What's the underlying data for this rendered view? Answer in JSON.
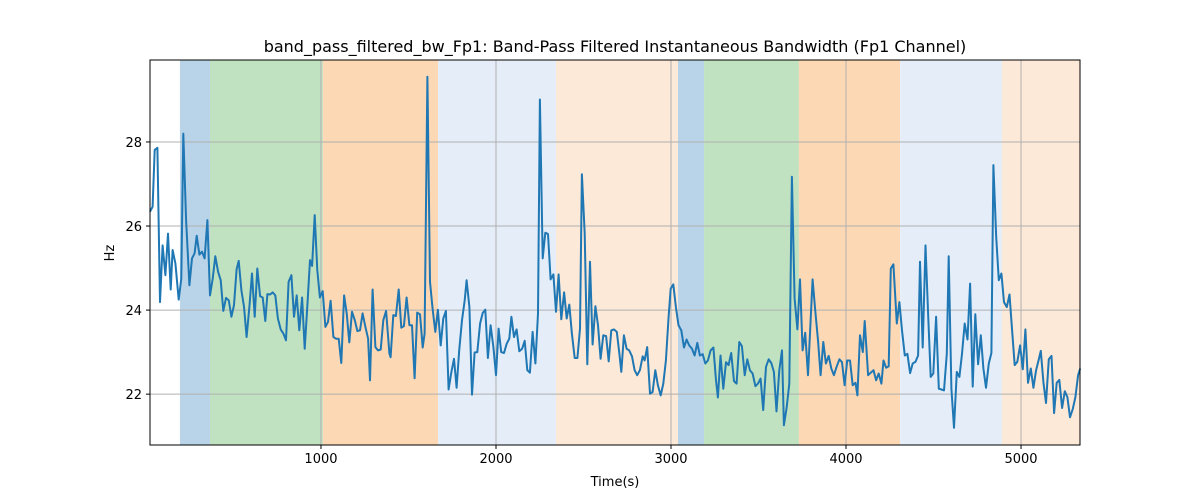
{
  "chart_data": {
    "type": "line",
    "title": "band_pass_filtered_bw_Fp1: Band-Pass Filtered Instantaneous Bandwidth (Fp1 Channel)",
    "xlabel": "Time(s)",
    "ylabel": "Hz",
    "xlim": [
      23,
      5337
    ],
    "ylim": [
      20.79,
      29.95
    ],
    "xticks": [
      1000,
      2000,
      3000,
      4000,
      5000
    ],
    "yticks": [
      22,
      24,
      26,
      28
    ],
    "grid": true,
    "line_color": "#1f77b4",
    "bands": [
      {
        "start": 194,
        "end": 366,
        "color": "#b9d4e9"
      },
      {
        "start": 366,
        "end": 1011,
        "color": "#c0e2c0"
      },
      {
        "start": 1011,
        "end": 1669,
        "color": "#fdd8b5"
      },
      {
        "start": 1669,
        "end": 2343,
        "color": "#e5eef8"
      },
      {
        "start": 2343,
        "end": 3040,
        "color": "#fde9d7"
      },
      {
        "start": 3040,
        "end": 3189,
        "color": "#b9d4e9"
      },
      {
        "start": 3189,
        "end": 3731,
        "color": "#c0e2c0"
      },
      {
        "start": 3731,
        "end": 4309,
        "color": "#fdd8b5"
      },
      {
        "start": 4309,
        "end": 4891,
        "color": "#e5eef8"
      },
      {
        "start": 4891,
        "end": 5337,
        "color": "#fde9d7"
      }
    ],
    "x": [
      23,
      38,
      50,
      65,
      80,
      95,
      111,
      126,
      141,
      152,
      168,
      187,
      202,
      213,
      229,
      248,
      263,
      278,
      290,
      305,
      320,
      335,
      351,
      366,
      381,
      396,
      412,
      427,
      442,
      457,
      473,
      488,
      503,
      518,
      530,
      545,
      560,
      575,
      591,
      606,
      621,
      636,
      652,
      667,
      682,
      694,
      709,
      724,
      739,
      754,
      770,
      785,
      800,
      815,
      831,
      846,
      861,
      876,
      892,
      907,
      922,
      937,
      949,
      964,
      979,
      994,
      1010,
      1025,
      1040,
      1055,
      1071,
      1086,
      1101,
      1116,
      1132,
      1147,
      1162,
      1177,
      1193,
      1208,
      1223,
      1238,
      1254,
      1269,
      1280,
      1295,
      1311,
      1326,
      1341,
      1356,
      1372,
      1391,
      1398,
      1413,
      1428,
      1444,
      1459,
      1474,
      1489,
      1505,
      1520,
      1535,
      1550,
      1566,
      1581,
      1592,
      1608,
      1623,
      1638,
      1653,
      1668,
      1684,
      1699,
      1714,
      1729,
      1745,
      1760,
      1775,
      1790,
      1806,
      1821,
      1832,
      1848,
      1863,
      1878,
      1893,
      1909,
      1924,
      1939,
      1954,
      1969,
      1985,
      2000,
      2015,
      2030,
      2046,
      2061,
      2076,
      2088,
      2103,
      2118,
      2133,
      2149,
      2164,
      2179,
      2194,
      2209,
      2225,
      2240,
      2251,
      2267,
      2282,
      2297,
      2312,
      2328,
      2343,
      2358,
      2373,
      2389,
      2404,
      2419,
      2434,
      2450,
      2465,
      2480,
      2491,
      2507,
      2522,
      2537,
      2552,
      2568,
      2583,
      2598,
      2613,
      2629,
      2644,
      2659,
      2674,
      2690,
      2705,
      2716,
      2731,
      2746,
      2761,
      2777,
      2792,
      2807,
      2822,
      2838,
      2849,
      2864,
      2880,
      2895,
      2910,
      2925,
      2941,
      2956,
      2971,
      2986,
      2998,
      3013,
      3028,
      3043,
      3059,
      3074,
      3089,
      3104,
      3120,
      3135,
      3150,
      3165,
      3181,
      3196,
      3211,
      3226,
      3242,
      3257,
      3268,
      3283,
      3299,
      3314,
      3329,
      3344,
      3360,
      3375,
      3390,
      3405,
      3421,
      3436,
      3451,
      3466,
      3482,
      3497,
      3512,
      3527,
      3543,
      3558,
      3573,
      3588,
      3603,
      3619,
      3634,
      3645,
      3661,
      3676,
      3691,
      3706,
      3722,
      3737,
      3752,
      3767,
      3783,
      3798,
      3809,
      3824,
      3840,
      3855,
      3870,
      3885,
      3901,
      3916,
      3931,
      3946,
      3962,
      3977,
      3992,
      4007,
      4023,
      4038,
      4054,
      4065,
      4080,
      4096,
      4107,
      4126,
      4141,
      4157,
      4172,
      4187,
      4202,
      4214,
      4229,
      4244,
      4256,
      4271,
      4290,
      4305,
      4320,
      4336,
      4351,
      4366,
      4381,
      4397,
      4412,
      4423,
      4438,
      4454,
      4469,
      4484,
      4499,
      4515,
      4530,
      4545,
      4560,
      4576,
      4587,
      4602,
      4617,
      4633,
      4648,
      4663,
      4678,
      4694,
      4709,
      4724,
      4739,
      4755,
      4770,
      4785,
      4800,
      4816,
      4831,
      4842,
      4858,
      4873,
      4888,
      4903,
      4919,
      4934,
      4949,
      4964,
      4979,
      4995,
      5010,
      5025,
      5040,
      5056,
      5071,
      5086,
      5101,
      5113,
      5128,
      5143,
      5159,
      5174,
      5189,
      5204,
      5219,
      5235,
      5250,
      5265,
      5280,
      5296,
      5311,
      5326,
      5338
    ],
    "y": [
      26.34,
      26.46,
      27.81,
      27.86,
      24.19,
      25.54,
      24.83,
      25.82,
      24.49,
      25.43,
      25.11,
      24.25,
      24.75,
      28.2,
      26.14,
      24.59,
      25.23,
      25.35,
      25.77,
      25.32,
      25.39,
      25.23,
      26.14,
      24.35,
      24.75,
      25.28,
      24.91,
      24.71,
      23.98,
      24.29,
      24.23,
      23.84,
      24.12,
      24.97,
      25.17,
      24.47,
      24.08,
      23.36,
      24.08,
      24.87,
      23.84,
      24.99,
      24.33,
      24.3,
      23.74,
      24.38,
      24.37,
      24.42,
      24.35,
      23.8,
      23.54,
      23.44,
      23.28,
      24.67,
      24.83,
      23.84,
      24.35,
      23.52,
      24.3,
      23.08,
      24.08,
      25.19,
      25.05,
      26.26,
      24.95,
      24.3,
      24.45,
      23.6,
      23.72,
      24.22,
      23.36,
      23.32,
      23.32,
      22.74,
      24.35,
      23.92,
      23.23,
      23.96,
      23.76,
      23.5,
      23.52,
      23.92,
      23.6,
      23.32,
      22.33,
      24.49,
      23.12,
      23.04,
      23.06,
      23.76,
      23.98,
      22.97,
      22.88,
      23.88,
      23.86,
      24.49,
      23.58,
      23.62,
      24.3,
      23.64,
      23.64,
      22.38,
      23.94,
      23.9,
      23.11,
      23.44,
      29.55,
      24.67,
      24.03,
      23.48,
      24.01,
      23.16,
      23.8,
      23.98,
      22.11,
      22.53,
      22.84,
      22.15,
      23.04,
      23.76,
      24.23,
      24.71,
      24.07,
      21.99,
      22.99,
      23.0,
      23.68,
      23.93,
      24.01,
      22.86,
      23.64,
      23.12,
      22.45,
      23.56,
      23.0,
      22.98,
      23.2,
      23.32,
      23.84,
      23.36,
      23.54,
      23.02,
      23.08,
      23.27,
      22.57,
      22.51,
      23.48,
      22.73,
      23.92,
      29.01,
      25.23,
      25.84,
      25.81,
      24.73,
      24.85,
      23.96,
      24.85,
      23.78,
      24.42,
      23.8,
      24.13,
      23.44,
      22.86,
      22.86,
      23.56,
      27.23,
      25.82,
      22.71,
      25.15,
      23.18,
      24.09,
      23.64,
      22.84,
      23.4,
      23.38,
      22.78,
      23.52,
      23.54,
      23.48,
      22.96,
      22.53,
      23.4,
      23.08,
      23.04,
      22.9,
      22.57,
      22.45,
      22.57,
      22.9,
      22.8,
      23.12,
      22.01,
      22.05,
      22.57,
      22.21,
      21.97,
      22.25,
      22.8,
      23.84,
      24.51,
      24.61,
      24.07,
      23.64,
      23.52,
      23.11,
      23.3,
      23.16,
      23.08,
      22.92,
      23.22,
      22.92,
      22.95,
      22.73,
      22.8,
      23.04,
      23.11,
      22.33,
      21.92,
      22.92,
      22.13,
      22.76,
      22.69,
      22.98,
      22.31,
      22.25,
      23.24,
      23.14,
      22.45,
      22.83,
      22.57,
      22.49,
      22.19,
      22.25,
      22.37,
      21.62,
      22.65,
      22.83,
      22.74,
      22.53,
      21.59,
      22.57,
      23.04,
      21.26,
      21.69,
      22.25,
      27.17,
      24.27,
      23.54,
      24.73,
      23.04,
      23.46,
      22.45,
      23.8,
      24.73,
      24.0,
      23.28,
      22.45,
      23.24,
      22.73,
      22.91,
      22.61,
      22.45,
      22.65,
      22.83,
      22.76,
      22.21,
      22.8,
      22.8,
      22.21,
      22.27,
      21.97,
      23.4,
      23.0,
      23.74,
      22.45,
      22.51,
      22.57,
      22.33,
      22.49,
      22.25,
      22.8,
      22.63,
      22.66,
      24.99,
      25.09,
      23.68,
      24.19,
      23.52,
      22.92,
      22.96,
      22.5,
      22.73,
      22.77,
      22.92,
      25.15,
      23.11,
      25.54,
      23.92,
      22.41,
      22.49,
      23.84,
      22.13,
      22.11,
      22.09,
      22.96,
      25.28,
      22.13,
      21.2,
      22.53,
      22.41,
      22.96,
      23.68,
      23.3,
      24.63,
      22.18,
      23.9,
      22.71,
      23.4,
      22.61,
      22.15,
      22.73,
      22.98,
      27.45,
      25.74,
      24.71,
      24.87,
      24.19,
      24.07,
      24.37,
      23.52,
      22.69,
      22.77,
      23.16,
      22.59,
      23.54,
      22.27,
      22.61,
      22.15,
      22.57,
      22.82,
      23.03,
      22.29,
      21.79,
      22.83,
      22.91,
      21.55,
      22.27,
      22.34,
      21.67,
      22.07,
      21.93,
      21.45,
      21.65,
      21.93,
      22.45,
      22.61
    ]
  }
}
